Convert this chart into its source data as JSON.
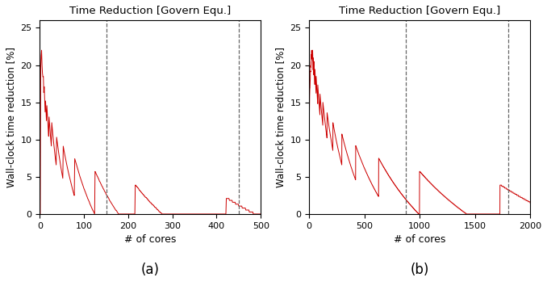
{
  "title": "Time Reduction [Govern Equ.]",
  "xlabel": "# of cores",
  "ylabel": "Wall-clock time reduction [%]",
  "ylim": [
    0,
    26
  ],
  "yticks": [
    0,
    5,
    10,
    15,
    20,
    25
  ],
  "background_color": "#ffffff",
  "line_color": "#cc0000",
  "dashed_color": "#666666",
  "subplot_labels": [
    "(a)",
    "(b)"
  ],
  "ne_a": 30,
  "ne_b": 60,
  "xlim_a": [
    0,
    500
  ],
  "xlim_b": [
    0,
    2000
  ],
  "xticks_a": [
    0,
    100,
    200,
    300,
    400,
    500
  ],
  "xticks_b": [
    0,
    500,
    1000,
    1500,
    2000
  ],
  "vlines_a": [
    150,
    450
  ],
  "vlines_b": [
    875,
    1800
  ]
}
